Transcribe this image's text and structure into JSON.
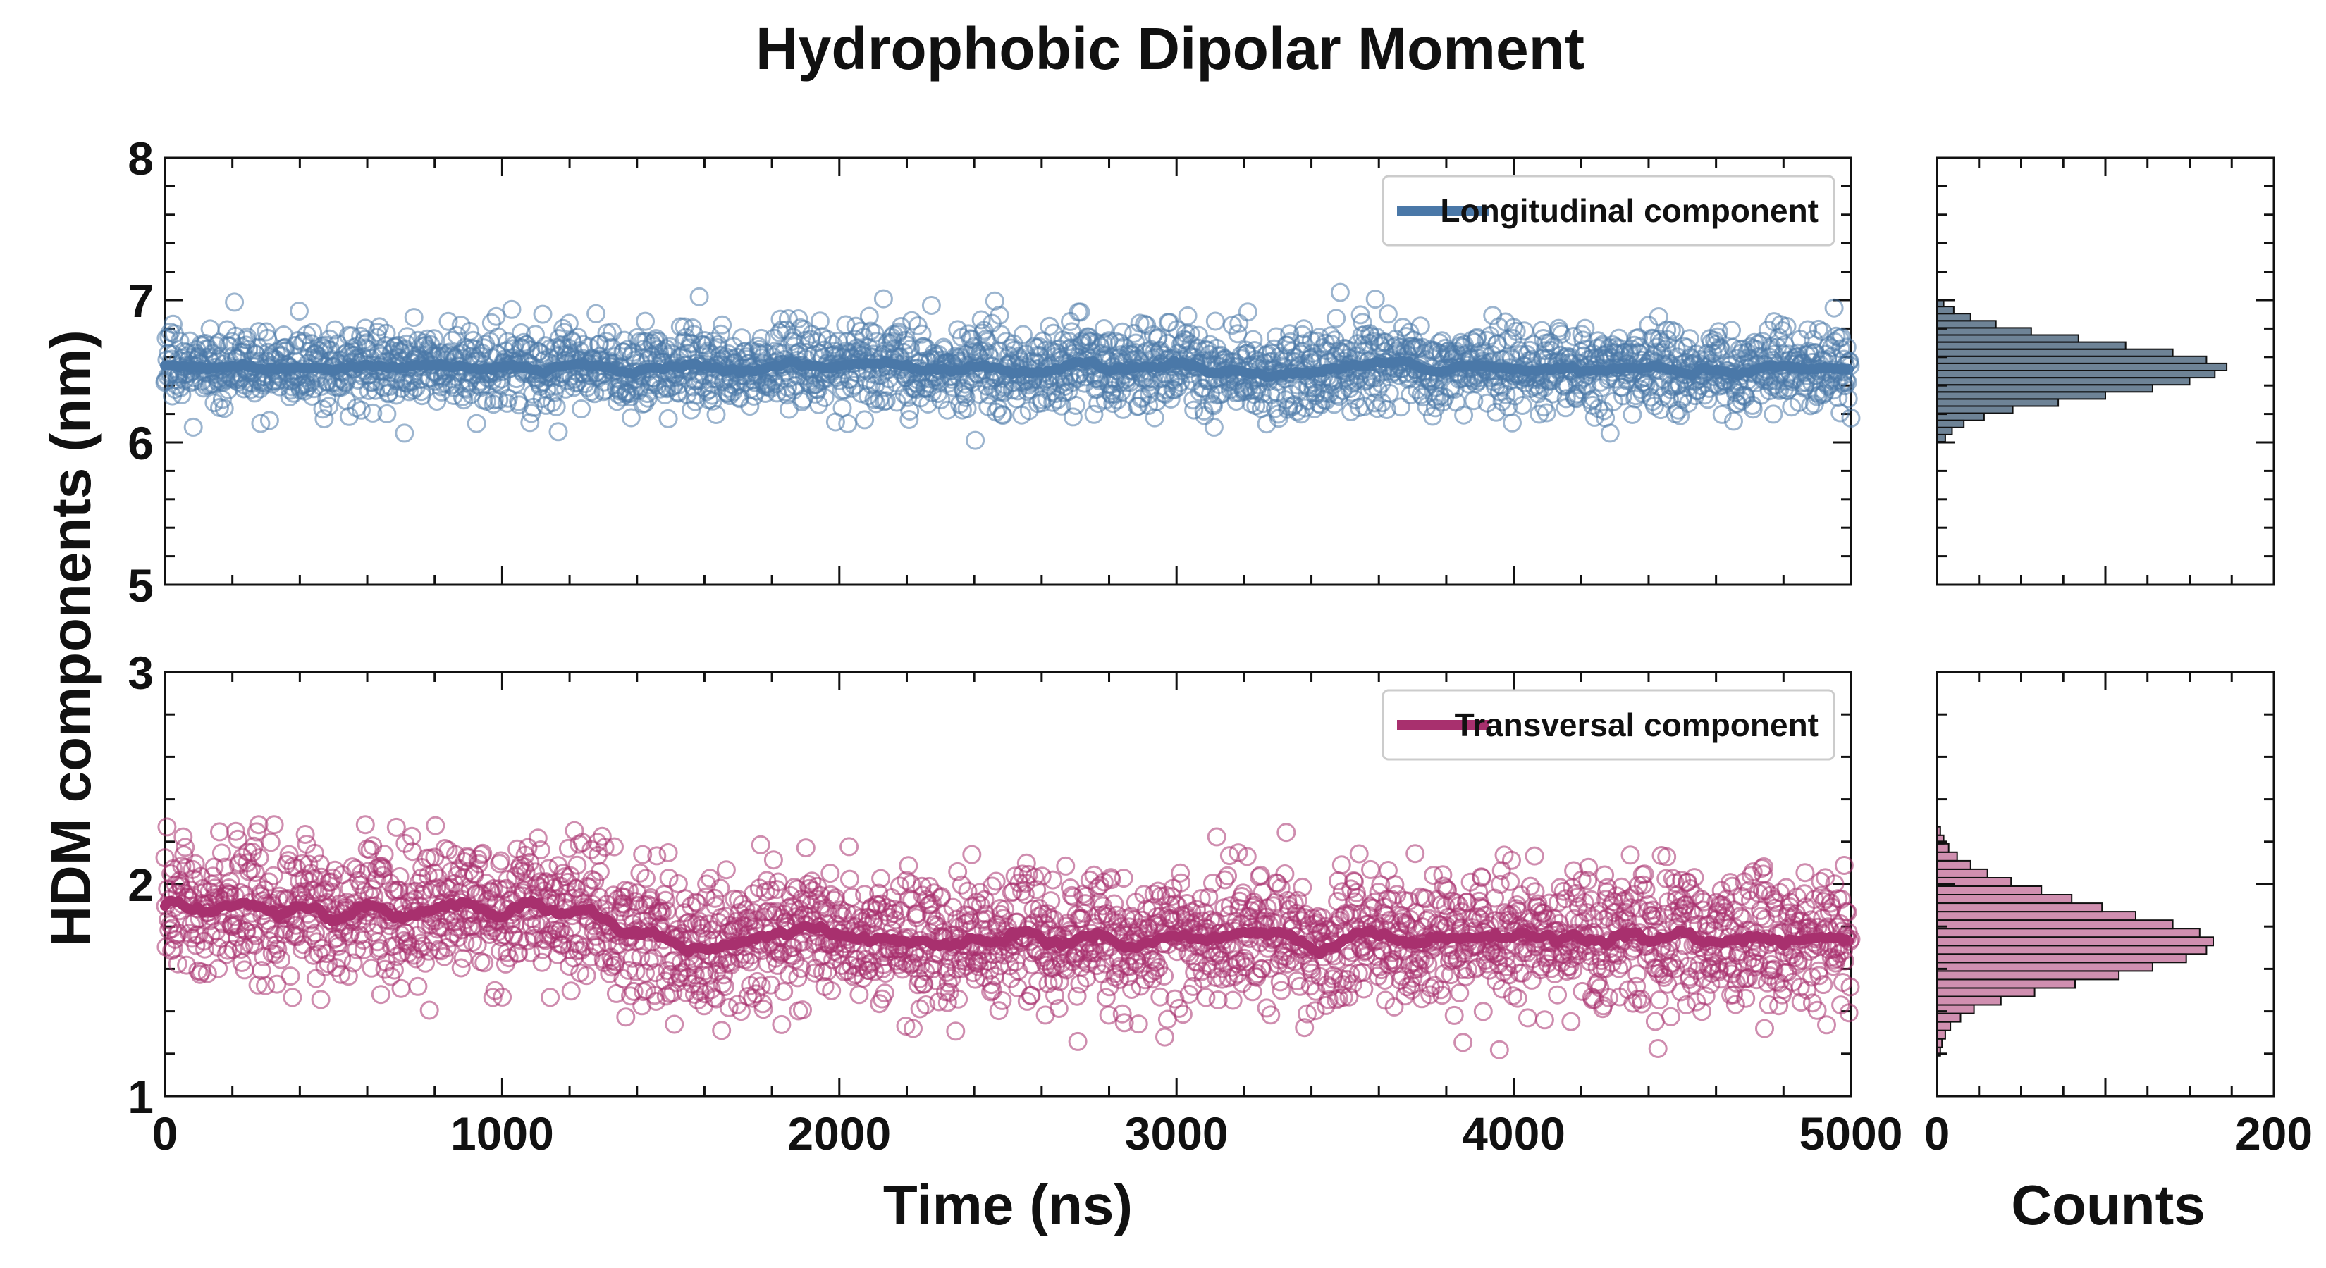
{
  "chart_data": [
    {
      "type": "scatter",
      "panel": "top-left",
      "title": "Hydrophobic Dipolar Moment",
      "xlabel": "Time (ns)",
      "ylabel": "HDM components (nm)",
      "xlim": [
        0,
        5000
      ],
      "ylim": [
        5,
        8
      ],
      "xticks": [
        "0",
        "1000",
        "2000",
        "3000",
        "4000",
        "5000"
      ],
      "yticks": [
        "5",
        "6",
        "7",
        "8"
      ],
      "legend": "top-right",
      "series": [
        {
          "name": "Longitudinal component",
          "color": "#4a78a8",
          "mean": 6.52,
          "spread": 0.15,
          "scatter_min": 5.88,
          "scatter_max": 7.07,
          "n_points": 2500
        }
      ]
    },
    {
      "type": "scatter",
      "panel": "bottom-left",
      "xlabel": "Time (ns)",
      "ylabel": "HDM components (nm)",
      "xlim": [
        0,
        5000
      ],
      "ylim": [
        1,
        3
      ],
      "xticks": [
        "0",
        "1000",
        "2000",
        "3000",
        "4000",
        "5000"
      ],
      "yticks": [
        "1",
        "2",
        "3"
      ],
      "legend": "top-right",
      "series": [
        {
          "name": "Transversal component",
          "color": "#a8306e",
          "segments": [
            {
              "t_start": 0,
              "t_end": 1300,
              "mean": 1.88
            },
            {
              "t_start": 1300,
              "t_end": 5000,
              "mean": 1.74
            }
          ],
          "spread": 0.16,
          "scatter_min": 1.17,
          "scatter_max": 2.28,
          "n_points": 2500
        }
      ]
    },
    {
      "type": "bar",
      "panel": "top-right",
      "orientation": "horizontal",
      "xlabel": "Counts",
      "xlim": [
        0,
        200
      ],
      "ylim": [
        5,
        8
      ],
      "color": "#3d5a73",
      "bin_centers": [
        6.03,
        6.08,
        6.13,
        6.18,
        6.23,
        6.28,
        6.33,
        6.38,
        6.43,
        6.48,
        6.53,
        6.58,
        6.63,
        6.68,
        6.73,
        6.78,
        6.83,
        6.88,
        6.93,
        6.98
      ],
      "counts": [
        5,
        9,
        16,
        28,
        45,
        72,
        100,
        128,
        150,
        165,
        172,
        160,
        140,
        112,
        84,
        56,
        35,
        20,
        10,
        4
      ]
    },
    {
      "type": "bar",
      "panel": "bottom-right",
      "orientation": "horizontal",
      "xlabel": "Counts",
      "xlim": [
        0,
        200
      ],
      "ylim": [
        1,
        3
      ],
      "xticks": [
        "0",
        "200"
      ],
      "color": "#c06a96",
      "bin_centers": [
        1.21,
        1.25,
        1.29,
        1.33,
        1.37,
        1.41,
        1.45,
        1.49,
        1.53,
        1.57,
        1.61,
        1.65,
        1.69,
        1.73,
        1.77,
        1.81,
        1.85,
        1.89,
        1.93,
        1.97,
        2.01,
        2.05,
        2.09,
        2.13,
        2.17,
        2.21,
        2.25
      ],
      "counts": [
        2,
        3,
        5,
        8,
        14,
        22,
        38,
        58,
        82,
        108,
        128,
        148,
        160,
        164,
        156,
        140,
        118,
        98,
        80,
        62,
        44,
        30,
        20,
        12,
        7,
        4,
        2
      ]
    }
  ]
}
